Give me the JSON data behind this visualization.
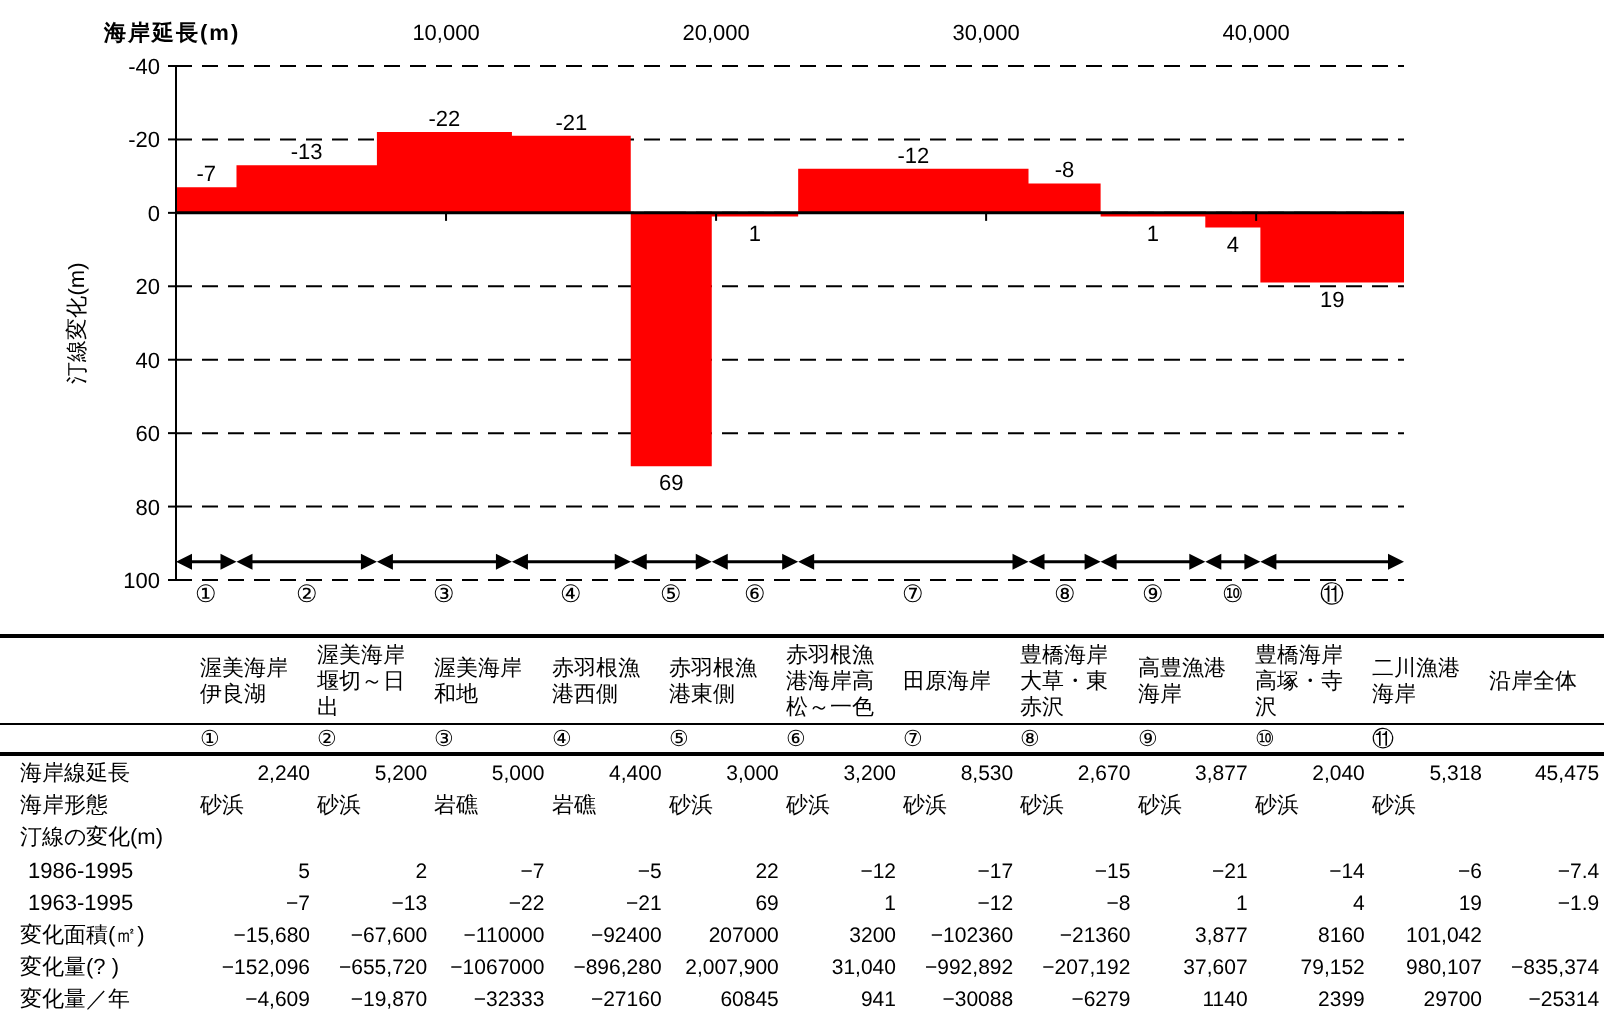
{
  "chart_data": {
    "type": "area",
    "xlabel": "海岸延長(m)",
    "ylabel": "汀線変化(m)",
    "x": [
      0,
      1120,
      2240,
      2240,
      4840,
      7440,
      7440,
      9940,
      12440,
      12440,
      14640,
      16840,
      16840,
      18340,
      19840,
      19840,
      21440,
      23040,
      23040,
      27305,
      31570,
      31570,
      32905,
      34240,
      34240,
      36178.5,
      38117,
      38117,
      39137,
      40157,
      40157,
      42816,
      45475
    ],
    "series": [
      {
        "color": "#ff0000",
        "values": [
          -7,
          -7,
          -7,
          -13,
          -13,
          -13,
          -22,
          -22,
          -22,
          -21,
          -21,
          -21,
          69,
          69,
          69,
          1,
          1,
          1,
          -12,
          -12,
          -12,
          -8,
          -8,
          -8,
          1,
          1,
          1,
          4,
          4,
          4,
          19,
          19,
          19
        ],
        "value_labels": [
          null,
          "-7",
          null,
          null,
          "-13",
          null,
          null,
          "-22",
          null,
          null,
          "-21",
          null,
          null,
          "69",
          null,
          null,
          "1",
          null,
          null,
          "-12",
          null,
          null,
          "-8",
          null,
          null,
          "1",
          null,
          null,
          "4",
          null,
          null,
          "19",
          null
        ]
      }
    ],
    "xlim": [
      0,
      45475
    ],
    "xticks": [
      {
        "value": 10000,
        "label": "10,000"
      },
      {
        "value": 20000,
        "label": "20,000"
      },
      {
        "value": 30000,
        "label": "30,000"
      },
      {
        "value": 40000,
        "label": "40,000"
      }
    ],
    "ylim": [
      100,
      -40
    ],
    "yticks": [
      -40,
      -20,
      0,
      20,
      40,
      60,
      80,
      100
    ],
    "grid": "y",
    "annotations": [
      "①",
      "②",
      "③",
      "④",
      "⑤",
      "⑥",
      "⑦",
      "⑧",
      "⑨",
      "⑩",
      "⑪",
      "渥美海岸伊良湖",
      "渥美海岸堰切～日出",
      "渥美海岸和地",
      "赤羽根漁港西側",
      "赤羽根漁港東側",
      "赤羽根漁港海岸高松～一色",
      "田原海岸",
      "豊橋海岸大草・東赤沢",
      "高豊漁港海岸",
      "豊橋海岸高塚・寺沢",
      "二川漁港海岸",
      "沿岸全体",
      "①",
      "②",
      "③",
      "④",
      "⑤",
      "⑥",
      "⑦",
      "⑧",
      "⑨",
      "⑩",
      "⑪",
      "海岸線延長",
      "2,240",
      "5,200",
      "5,000",
      "4,400",
      "3,000",
      "3,200",
      "8,530",
      "2,670",
      "3,877",
      "2,040",
      "5,318",
      "45,475",
      "海岸形態",
      "砂浜",
      "砂浜",
      "岩礁",
      "岩礁",
      "砂浜",
      "砂浜",
      "砂浜",
      "砂浜",
      "砂浜",
      "砂浜",
      "砂浜",
      "汀線の変化(m)",
      "1986-1995",
      "5",
      "2",
      "−7",
      "−5",
      "22",
      "−12",
      "−17",
      "−15",
      "−21",
      "−14",
      "−6",
      "−7.4",
      "1963-1995",
      "−7",
      "−13",
      "−22",
      "−21",
      "69",
      "1",
      "−12",
      "−8",
      "1",
      "4",
      "19",
      "−1.9",
      "変化面積(㎡)",
      "−15,680",
      "−67,600",
      "−110000",
      "−92400",
      "207000",
      "3200",
      "−102360",
      "−21360",
      "3,877",
      "8160",
      "101,042",
      "変化量(? )",
      "−152,096",
      "−655,720",
      "−1067000",
      "−896,280",
      "2,007,900",
      "31,040",
      "−992,892",
      "−207,192",
      "37,607",
      "79,152",
      "980,107",
      "−835,374",
      "変化量／年",
      "−4,609",
      "−19,870",
      "−32333",
      "−27160",
      "60845",
      "941",
      "−30088",
      "−6279",
      "1140",
      "2399",
      "29700",
      "−25314"
    ]
  }
}
